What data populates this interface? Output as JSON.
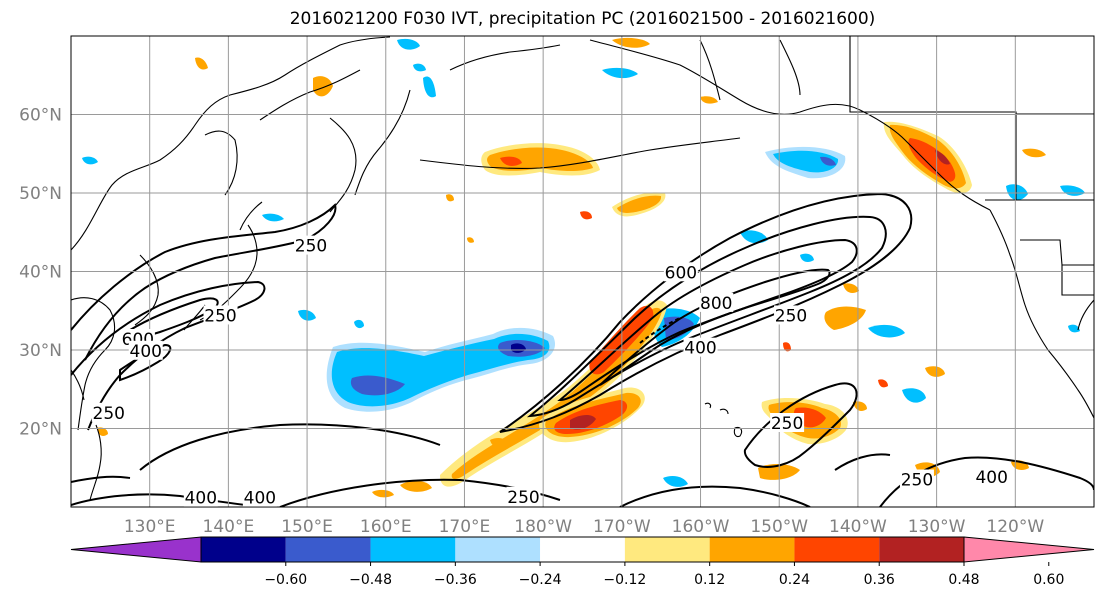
{
  "chart_data": {
    "type": "contour-map",
    "title": "2016021200 F030 IVT, precipitation PC (2016021500 - 2016021600)",
    "grid": true,
    "lon_ticks": [
      {
        "lon": 130,
        "label": "130°E"
      },
      {
        "lon": 140,
        "label": "140°E"
      },
      {
        "lon": 150,
        "label": "150°E"
      },
      {
        "lon": 160,
        "label": "160°E"
      },
      {
        "lon": 170,
        "label": "170°E"
      },
      {
        "lon": 180,
        "label": "180°W"
      },
      {
        "lon": 190,
        "label": "170°W"
      },
      {
        "lon": 200,
        "label": "160°W"
      },
      {
        "lon": 210,
        "label": "150°W"
      },
      {
        "lon": 220,
        "label": "140°W"
      },
      {
        "lon": 230,
        "label": "130°W"
      },
      {
        "lon": 240,
        "label": "120°W"
      }
    ],
    "lat_ticks": [
      {
        "lat": 20,
        "label": "20°N"
      },
      {
        "lat": 30,
        "label": "30°N"
      },
      {
        "lat": 40,
        "label": "40°N"
      },
      {
        "lat": 50,
        "label": "50°N"
      },
      {
        "lat": 60,
        "label": "60°N"
      }
    ],
    "lon_range": [
      120,
      250
    ],
    "lat_range": [
      10,
      70
    ],
    "ivt_contour_labels": [
      {
        "text": "250",
        "lon": 150.5,
        "lat": 43.3
      },
      {
        "text": "250",
        "lon": 139,
        "lat": 34.4
      },
      {
        "text": "600",
        "lon": 128.5,
        "lat": 31.4
      },
      {
        "text": "400",
        "lon": 129.5,
        "lat": 29.9
      },
      {
        "text": "250",
        "lon": 124.8,
        "lat": 22.0
      },
      {
        "text": "400",
        "lon": 136.5,
        "lat": 11.2
      },
      {
        "text": "400",
        "lon": 144,
        "lat": 11.2
      },
      {
        "text": "250",
        "lon": 177.5,
        "lat": 11.3
      },
      {
        "text": "600",
        "lon": 197.5,
        "lat": 39.9
      },
      {
        "text": "800",
        "lon": 202,
        "lat": 36.0
      },
      {
        "text": "250",
        "lon": 211.5,
        "lat": 34.4
      },
      {
        "text": "400",
        "lon": 200,
        "lat": 30.3
      },
      {
        "text": "250",
        "lon": 211,
        "lat": 20.7
      },
      {
        "text": "250",
        "lon": 227.5,
        "lat": 13.5
      },
      {
        "text": "400",
        "lon": 237,
        "lat": 13.8
      }
    ],
    "colorbar": {
      "tick_labels": [
        "−0.60",
        "−0.48",
        "−0.36",
        "−0.24",
        "−0.12",
        "0.12",
        "0.24",
        "0.36",
        "0.48",
        "0.60"
      ],
      "colors": [
        "#9932CC",
        "#00008B",
        "#3A5BCD",
        "#00BFFF",
        "#AEE0FF",
        "#FFFFFF",
        "#FFE97F",
        "#FFA500",
        "#FF4500",
        "#B22222",
        "#FF88AA"
      ]
    }
  }
}
